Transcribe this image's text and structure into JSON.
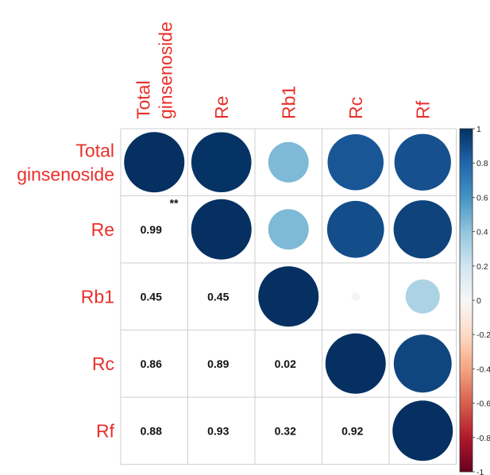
{
  "chart_data": {
    "type": "heatmap",
    "variables": [
      "Total ginsenoside",
      "Re",
      "Rb1",
      "Rc",
      "Rf"
    ],
    "row_labels": [
      [
        "Total",
        "ginsenoside"
      ],
      [
        "Re"
      ],
      [
        "Rb1"
      ],
      [
        "Rc"
      ],
      [
        "Rf"
      ]
    ],
    "col_labels": [
      [
        "Total",
        "ginsenoside"
      ],
      [
        "Re"
      ],
      [
        "Rb1"
      ],
      [
        "Rc"
      ],
      [
        "Rf"
      ]
    ],
    "matrix": [
      [
        1.0,
        0.99,
        0.45,
        0.86,
        0.88
      ],
      [
        0.99,
        1.0,
        0.45,
        0.89,
        0.93
      ],
      [
        0.45,
        0.45,
        1.0,
        0.02,
        0.32
      ],
      [
        0.86,
        0.89,
        0.02,
        1.0,
        0.92
      ],
      [
        0.88,
        0.93,
        0.32,
        0.92,
        1.0
      ]
    ],
    "lower_labels": [
      {
        "row": 1,
        "col": 0,
        "text": "0.99"
      },
      {
        "row": 2,
        "col": 0,
        "text": "0.45"
      },
      {
        "row": 2,
        "col": 1,
        "text": "0.45"
      },
      {
        "row": 3,
        "col": 0,
        "text": "0.86"
      },
      {
        "row": 3,
        "col": 1,
        "text": "0.89"
      },
      {
        "row": 3,
        "col": 2,
        "text": "0.02"
      },
      {
        "row": 4,
        "col": 0,
        "text": "0.88"
      },
      {
        "row": 4,
        "col": 1,
        "text": "0.93"
      },
      {
        "row": 4,
        "col": 2,
        "text": "0.32"
      },
      {
        "row": 4,
        "col": 3,
        "text": "0.92"
      }
    ],
    "significance": [
      {
        "row": 1,
        "col": 0,
        "text": "**"
      }
    ],
    "upper_glyph": "circle",
    "colorbar": {
      "ticks": [
        "1",
        "0.8",
        "0.6",
        "0.4",
        "0.2",
        "0",
        "-0.2",
        "-0.4",
        "-0.6",
        "-0.8",
        "-1"
      ],
      "range": [
        -1,
        1
      ]
    },
    "label_color": "#e8302a",
    "colors": [
      "#67001f",
      "#b2182b",
      "#d6604d",
      "#f4a582",
      "#fddbc7",
      "#f7f7f7",
      "#d1e5f0",
      "#92c5de",
      "#4393c3",
      "#2166ac",
      "#053061"
    ]
  }
}
